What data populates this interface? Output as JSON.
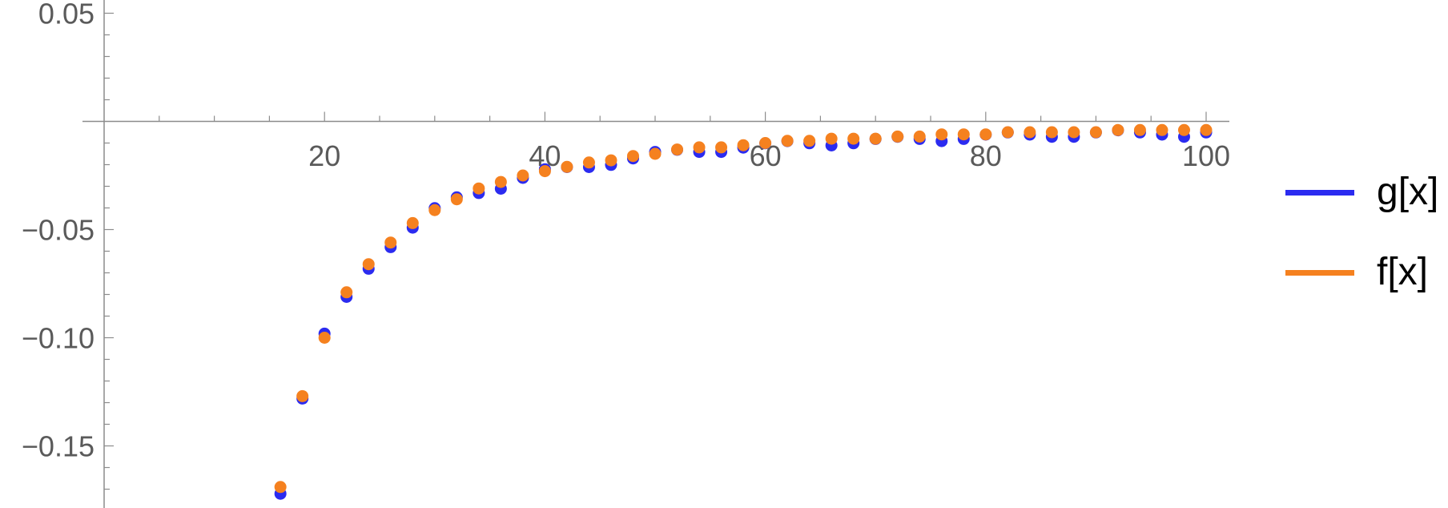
{
  "chart_data": {
    "type": "scatter",
    "title": "",
    "xlabel": "",
    "ylabel": "",
    "xlim": [
      0,
      102
    ],
    "ylim": [
      -0.18,
      0.055
    ],
    "x_ticks": [
      20,
      40,
      60,
      80,
      100
    ],
    "y_ticks": [
      0.05,
      -0.05,
      -0.1,
      -0.15
    ],
    "y_tick_labels": [
      "0.05",
      "−0.05",
      "−0.10",
      "−0.15"
    ],
    "grid": false,
    "legend_position": "right",
    "series": [
      {
        "name": "g[x]",
        "color": "#2b2bf0",
        "x": [
          16,
          18,
          20,
          22,
          24,
          26,
          28,
          30,
          32,
          34,
          36,
          38,
          40,
          42,
          44,
          46,
          48,
          50,
          52,
          54,
          56,
          58,
          60,
          62,
          64,
          66,
          68,
          70,
          72,
          74,
          76,
          78,
          80,
          82,
          84,
          86,
          88,
          90,
          92,
          94,
          96,
          98,
          100
        ],
        "y": [
          -0.171,
          -0.127,
          -0.097,
          -0.08,
          -0.067,
          -0.057,
          -0.048,
          -0.039,
          -0.034,
          -0.032,
          -0.03,
          -0.025,
          -0.021,
          -0.02,
          -0.02,
          -0.019,
          -0.016,
          -0.013,
          -0.012,
          -0.013,
          -0.013,
          -0.011,
          -0.009,
          -0.008,
          -0.009,
          -0.01,
          -0.009,
          -0.007,
          -0.006,
          -0.007,
          -0.008,
          -0.007,
          -0.005,
          -0.004,
          -0.005,
          -0.006,
          -0.006,
          -0.004,
          -0.003,
          -0.004,
          -0.005,
          -0.006,
          -0.004
        ]
      },
      {
        "name": "f[x]",
        "color": "#f5811f",
        "x": [
          16,
          18,
          20,
          22,
          24,
          26,
          28,
          30,
          32,
          34,
          36,
          38,
          40,
          42,
          44,
          46,
          48,
          50,
          52,
          54,
          56,
          58,
          60,
          62,
          64,
          66,
          68,
          70,
          72,
          74,
          76,
          78,
          80,
          82,
          84,
          86,
          88,
          90,
          92,
          94,
          96,
          98,
          100
        ],
        "y": [
          -0.169,
          -0.127,
          -0.1,
          -0.079,
          -0.066,
          -0.056,
          -0.047,
          -0.041,
          -0.036,
          -0.031,
          -0.028,
          -0.025,
          -0.023,
          -0.021,
          -0.019,
          -0.018,
          -0.016,
          -0.015,
          -0.013,
          -0.012,
          -0.012,
          -0.011,
          -0.01,
          -0.009,
          -0.009,
          -0.008,
          -0.008,
          -0.008,
          -0.007,
          -0.007,
          -0.006,
          -0.006,
          -0.006,
          -0.005,
          -0.005,
          -0.005,
          -0.005,
          -0.005,
          -0.004,
          -0.004,
          -0.004,
          -0.004,
          -0.004
        ]
      }
    ]
  }
}
